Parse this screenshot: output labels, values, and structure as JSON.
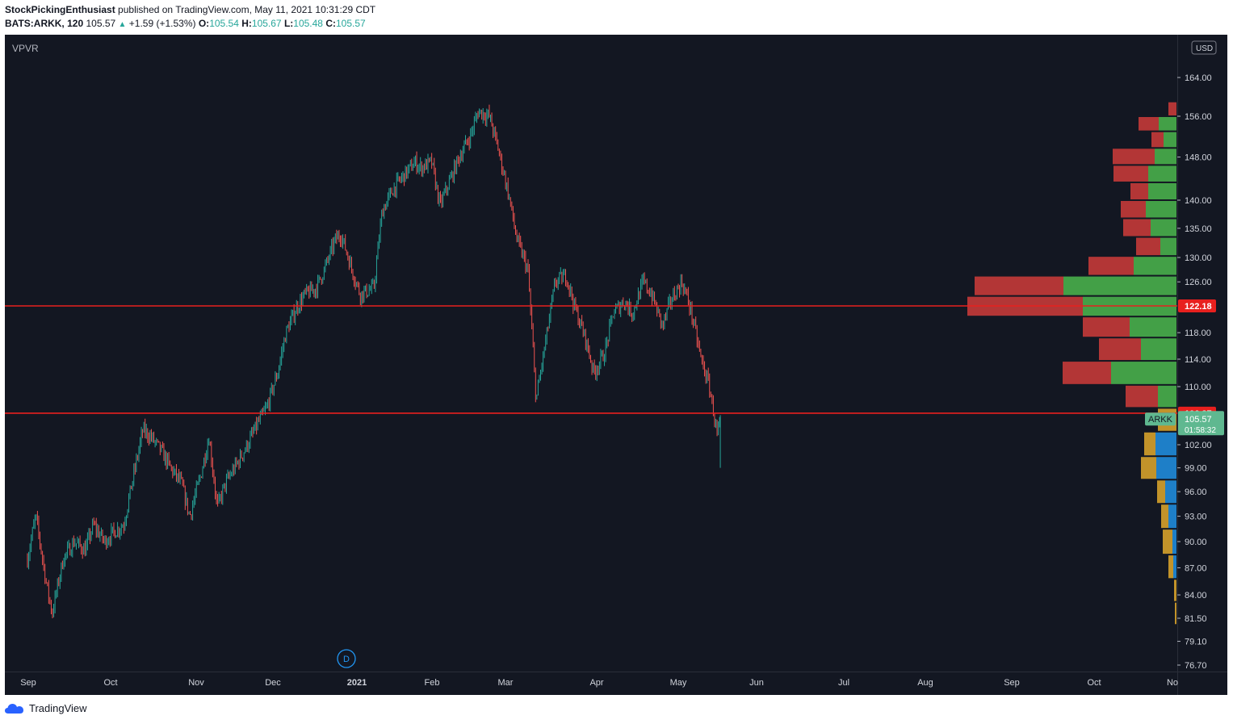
{
  "header": {
    "author": "StockPickingEnthusiast",
    "published_text": "published on TradingView.com, May 11, 2021 10:31:29 CDT",
    "symbol": "BATS:ARKK, 120",
    "last": "105.57",
    "change_arrow": "▲",
    "change": "+1.59 (+1.53%)",
    "o_label": "O:",
    "o": "105.54",
    "h_label": "H:",
    "h": "105.67",
    "l_label": "L:",
    "l": "105.48",
    "c_label": "C:",
    "c": "105.57"
  },
  "footer": {
    "brand": "TradingView",
    "logo_icon": "tradingview-cloud-icon"
  },
  "chart_data": {
    "type": "candlestick",
    "indicator_label": "VPVR",
    "currency_badge": "USD",
    "y_ticks": [
      76.7,
      79.1,
      81.5,
      84.0,
      87.0,
      90.0,
      93.0,
      96.0,
      99.0,
      102.0,
      110.0,
      114.0,
      118.0,
      126.0,
      130.0,
      135.0,
      140.0,
      148.0,
      156.0,
      164.0
    ],
    "y_tick_labels": [
      "76.70",
      "79.10",
      "81.50",
      "84.00",
      "87.00",
      "90.00",
      "93.00",
      "96.00",
      "99.00",
      "102.00",
      "110.00",
      "114.00",
      "118.00",
      "126.00",
      "130.00",
      "135.00",
      "140.00",
      "148.00",
      "156.00",
      "164.00"
    ],
    "x_ticks": [
      "Sep",
      "Oct",
      "Nov",
      "Dec",
      "2021",
      "Feb",
      "Mar",
      "Apr",
      "May",
      "Jun",
      "Jul",
      "Aug",
      "Sep",
      "Oct",
      "No"
    ],
    "price_path": [
      [
        "2020-09-01",
        88
      ],
      [
        "2020-09-04",
        93
      ],
      [
        "2020-09-08",
        85
      ],
      [
        "2020-09-10",
        82
      ],
      [
        "2020-09-14",
        88
      ],
      [
        "2020-09-18",
        90
      ],
      [
        "2020-09-22",
        89
      ],
      [
        "2020-09-25",
        92
      ],
      [
        "2020-09-29",
        90
      ],
      [
        "2020-10-02",
        91
      ],
      [
        "2020-10-06",
        92
      ],
      [
        "2020-10-09",
        97
      ],
      [
        "2020-10-13",
        104
      ],
      [
        "2020-10-16",
        103
      ],
      [
        "2020-10-20",
        101
      ],
      [
        "2020-10-23",
        99
      ],
      [
        "2020-10-27",
        97
      ],
      [
        "2020-10-30",
        93
      ],
      [
        "2020-11-03",
        98
      ],
      [
        "2020-11-06",
        103
      ],
      [
        "2020-11-09",
        94
      ],
      [
        "2020-11-12",
        97
      ],
      [
        "2020-11-17",
        100
      ],
      [
        "2020-11-20",
        102
      ],
      [
        "2020-11-24",
        105
      ],
      [
        "2020-11-27",
        107
      ],
      [
        "2020-12-01",
        112
      ],
      [
        "2020-12-04",
        118
      ],
      [
        "2020-12-08",
        122
      ],
      [
        "2020-12-11",
        124
      ],
      [
        "2020-12-15",
        125
      ],
      [
        "2020-12-18",
        128
      ],
      [
        "2020-12-22",
        133
      ],
      [
        "2020-12-24",
        134
      ],
      [
        "2020-12-28",
        128
      ],
      [
        "2020-12-31",
        124
      ],
      [
        "2021-01-05",
        125
      ],
      [
        "2021-01-08",
        138
      ],
      [
        "2021-01-12",
        142
      ],
      [
        "2021-01-15",
        144
      ],
      [
        "2021-01-20",
        147
      ],
      [
        "2021-01-22",
        146
      ],
      [
        "2021-01-26",
        147
      ],
      [
        "2021-01-29",
        139
      ],
      [
        "2021-02-02",
        144
      ],
      [
        "2021-02-05",
        148
      ],
      [
        "2021-02-09",
        152
      ],
      [
        "2021-02-12",
        157
      ],
      [
        "2021-02-16",
        156
      ],
      [
        "2021-02-19",
        150
      ],
      [
        "2021-02-23",
        141
      ],
      [
        "2021-02-26",
        133
      ],
      [
        "2021-03-02",
        128
      ],
      [
        "2021-03-05",
        108
      ],
      [
        "2021-03-09",
        118
      ],
      [
        "2021-03-12",
        126
      ],
      [
        "2021-03-16",
        127
      ],
      [
        "2021-03-19",
        122
      ],
      [
        "2021-03-23",
        117
      ],
      [
        "2021-03-26",
        112
      ],
      [
        "2021-03-30",
        115
      ],
      [
        "2021-04-02",
        121
      ],
      [
        "2021-04-06",
        123
      ],
      [
        "2021-04-09",
        121
      ],
      [
        "2021-04-13",
        126
      ],
      [
        "2021-04-16",
        124
      ],
      [
        "2021-04-20",
        119
      ],
      [
        "2021-04-23",
        123
      ],
      [
        "2021-04-27",
        126
      ],
      [
        "2021-04-30",
        122
      ],
      [
        "2021-05-04",
        114
      ],
      [
        "2021-05-07",
        110
      ],
      [
        "2021-05-10",
        103
      ],
      [
        "2021-05-11",
        105.57
      ]
    ],
    "last_price": 105.57,
    "last_price_label": "105.57",
    "countdown_label": "01:58:32",
    "symbol_tag": "ARKK",
    "horizontal_lines": [
      {
        "price": 122.18,
        "label": "122.18"
      },
      {
        "price": 106.27,
        "label": "106.27"
      }
    ],
    "volume_profile": [
      {
        "price": 157.5,
        "up": 0,
        "down": 10
      },
      {
        "price": 154.5,
        "up": 22,
        "down": 25
      },
      {
        "price": 151.5,
        "up": 16,
        "down": 15
      },
      {
        "price": 148.0,
        "up": 27,
        "down": 52
      },
      {
        "price": 145.0,
        "up": 35,
        "down": 43
      },
      {
        "price": 141.5,
        "up": 35,
        "down": 22
      },
      {
        "price": 138.5,
        "up": 38,
        "down": 31
      },
      {
        "price": 135.0,
        "up": 32,
        "down": 34
      },
      {
        "price": 132.0,
        "up": 20,
        "down": 30
      },
      {
        "price": 128.5,
        "up": 53,
        "down": 56
      },
      {
        "price": 125.5,
        "up": 140,
        "down": 110
      },
      {
        "price": 122.0,
        "up": 116,
        "down": 143
      },
      {
        "price": 119.0,
        "up": 58,
        "down": 58
      },
      {
        "price": 115.5,
        "up": 44,
        "down": 52
      },
      {
        "price": 112.0,
        "up": 81,
        "down": 60
      },
      {
        "price": 108.5,
        "up": 23,
        "down": 40
      },
      {
        "price": 105.5,
        "up": 0,
        "down": 23
      },
      {
        "price": 102.0,
        "up": 26,
        "down": 14
      },
      {
        "price": 99.0,
        "up": 25,
        "down": 19
      },
      {
        "price": 96.0,
        "up": 14,
        "down": 10
      },
      {
        "price": 93.0,
        "up": 10,
        "down": 9
      },
      {
        "price": 90.0,
        "up": 5,
        "down": 12
      },
      {
        "price": 87.0,
        "up": 4,
        "down": 6
      },
      {
        "price": 84.5,
        "up": 0,
        "down": 3
      },
      {
        "price": 82.0,
        "up": 0,
        "down": 2
      }
    ],
    "colors": {
      "background": "#131722",
      "up_candle": "#26a69a",
      "down_candle": "#ef5350",
      "profile_up_above": "#43a047",
      "profile_down_above": "#b33636",
      "profile_up_below": "#1e7fc8",
      "profile_down_below": "#c2932a",
      "level_line": "#e8201e",
      "last_price": "#5fb890"
    }
  }
}
